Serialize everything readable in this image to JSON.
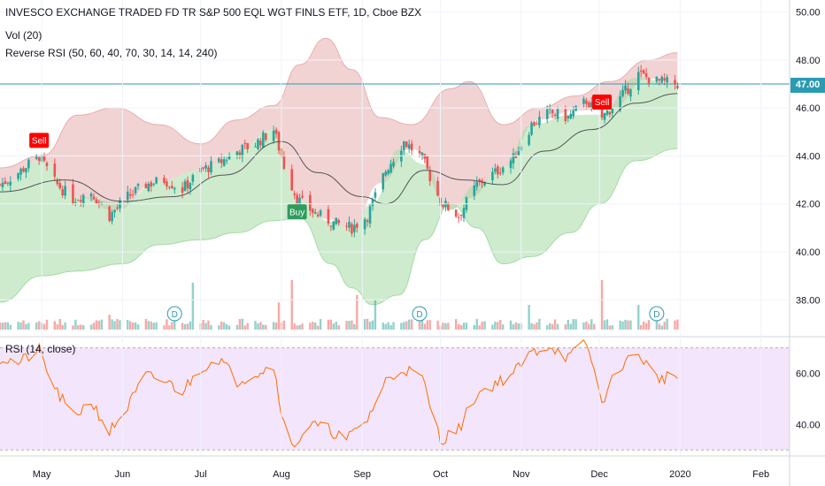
{
  "legend": {
    "title": "INVESCO EXCHANGE TRADED FD TR S&P 500 EQL WGT FINLS ETF, 1D, Cboe BZX",
    "volume": "Vol (20)",
    "reverse_rsi": "Reverse RSI (50, 60, 40, 70, 30, 14, 14, 240)",
    "rsi": "RSI (14, close)"
  },
  "colors": {
    "up": "#26a69a",
    "down": "#ef5350",
    "band_upper": "#e8aeae",
    "band_lower": "#a5dba5",
    "ma": "#555555",
    "rsi_line": "#ff6d00",
    "rsi_bg": "#f3e5fb",
    "price_line": "#2a9bb2",
    "sell_marker": "#ff0000",
    "buy_marker": "#2e9c5e"
  },
  "last_price": "47.00",
  "signals": [
    {
      "label": "Sell",
      "date": "2019-04-30",
      "type": "sell"
    },
    {
      "label": "Buy",
      "date": "2019-08-07",
      "type": "buy"
    },
    {
      "label": "Sell",
      "date": "2019-12-02",
      "type": "sell"
    }
  ],
  "dividends": [
    {
      "label": "D",
      "date": "2019-06-21"
    },
    {
      "label": "D",
      "date": "2019-09-23"
    },
    {
      "label": "D",
      "date": "2019-12-23"
    }
  ],
  "chart_data": [
    {
      "type": "candlestick",
      "x_axis_labels": [
        "May",
        "Jun",
        "Jul",
        "Aug",
        "Sep",
        "Oct",
        "Nov",
        "Dec",
        "2020",
        "Feb"
      ],
      "x_axis_dates": [
        "2019-05-01",
        "2019-06-01",
        "2019-07-01",
        "2019-08-01",
        "2019-09-01",
        "2019-10-01",
        "2019-11-01",
        "2019-12-01",
        "2020-01-01",
        "2020-02-01"
      ],
      "y_ticks": [
        "38.00",
        "40.00",
        "42.00",
        "44.00",
        "46.00",
        "48.00",
        "50.00"
      ],
      "ylim": [
        36.5,
        50.5
      ],
      "xlim": [
        "2019-04-15",
        "2020-02-12"
      ],
      "price_line": 47.0,
      "price_path": [
        [
          "2019-04-15",
          42.8
        ],
        [
          "2019-04-22",
          43.3
        ],
        [
          "2019-04-30",
          44.0
        ],
        [
          "2019-05-06",
          42.9
        ],
        [
          "2019-05-13",
          42.2
        ],
        [
          "2019-05-20",
          42.5
        ],
        [
          "2019-05-27",
          41.5
        ],
        [
          "2019-06-03",
          42.3
        ],
        [
          "2019-06-10",
          42.8
        ],
        [
          "2019-06-17",
          43.0
        ],
        [
          "2019-06-24",
          42.6
        ],
        [
          "2019-07-01",
          43.4
        ],
        [
          "2019-07-08",
          43.7
        ],
        [
          "2019-07-15",
          44.2
        ],
        [
          "2019-07-22",
          44.5
        ],
        [
          "2019-07-29",
          45.1
        ],
        [
          "2019-08-02",
          43.6
        ],
        [
          "2019-08-07",
          42.2
        ],
        [
          "2019-08-14",
          41.6
        ],
        [
          "2019-08-21",
          41.2
        ],
        [
          "2019-08-28",
          41.0
        ],
        [
          "2019-09-03",
          41.5
        ],
        [
          "2019-09-10",
          43.4
        ],
        [
          "2019-09-17",
          44.6
        ],
        [
          "2019-09-24",
          43.9
        ],
        [
          "2019-10-01",
          42.1
        ],
        [
          "2019-10-08",
          41.5
        ],
        [
          "2019-10-15",
          42.8
        ],
        [
          "2019-10-22",
          43.3
        ],
        [
          "2019-10-29",
          43.9
        ],
        [
          "2019-11-05",
          45.3
        ],
        [
          "2019-11-12",
          45.8
        ],
        [
          "2019-11-19",
          45.6
        ],
        [
          "2019-11-26",
          46.3
        ],
        [
          "2019-12-02",
          45.6
        ],
        [
          "2019-12-09",
          46.4
        ],
        [
          "2019-12-16",
          47.4
        ],
        [
          "2019-12-23",
          47.1
        ],
        [
          "2019-12-31",
          47.0
        ]
      ],
      "upper_band": [
        [
          "2019-04-15",
          43.5
        ],
        [
          "2019-05-01",
          44.0
        ],
        [
          "2019-05-15",
          45.7
        ],
        [
          "2019-05-29",
          46.0
        ],
        [
          "2019-06-15",
          45.3
        ],
        [
          "2019-07-01",
          44.5
        ],
        [
          "2019-07-15",
          45.5
        ],
        [
          "2019-07-29",
          46.1
        ],
        [
          "2019-08-08",
          47.8
        ],
        [
          "2019-08-18",
          48.9
        ],
        [
          "2019-08-28",
          47.6
        ],
        [
          "2019-09-08",
          45.6
        ],
        [
          "2019-09-20",
          45.3
        ],
        [
          "2019-10-05",
          46.8
        ],
        [
          "2019-10-12",
          47.1
        ],
        [
          "2019-10-25",
          45.3
        ],
        [
          "2019-11-08",
          46.0
        ],
        [
          "2019-11-22",
          46.5
        ],
        [
          "2019-12-05",
          47.1
        ],
        [
          "2019-12-20",
          48.0
        ],
        [
          "2019-12-31",
          48.3
        ]
      ],
      "lower_band": [
        [
          "2019-04-15",
          37.9
        ],
        [
          "2019-05-01",
          39.0
        ],
        [
          "2019-05-15",
          39.2
        ],
        [
          "2019-06-01",
          39.5
        ],
        [
          "2019-06-15",
          40.3
        ],
        [
          "2019-07-01",
          40.5
        ],
        [
          "2019-07-15",
          40.8
        ],
        [
          "2019-07-29",
          41.3
        ],
        [
          "2019-08-08",
          41.4
        ],
        [
          "2019-08-20",
          39.5
        ],
        [
          "2019-08-28",
          38.5
        ],
        [
          "2019-09-05",
          37.8
        ],
        [
          "2019-09-15",
          38.2
        ],
        [
          "2019-09-25",
          40.5
        ],
        [
          "2019-10-05",
          42.0
        ],
        [
          "2019-10-15",
          41.0
        ],
        [
          "2019-10-25",
          39.5
        ],
        [
          "2019-11-05",
          39.8
        ],
        [
          "2019-11-20",
          40.8
        ],
        [
          "2019-12-01",
          42.0
        ],
        [
          "2019-12-15",
          43.8
        ],
        [
          "2019-12-31",
          44.3
        ]
      ],
      "ma": [
        [
          "2019-04-15",
          42.5
        ],
        [
          "2019-05-10",
          43.0
        ],
        [
          "2019-06-01",
          42.1
        ],
        [
          "2019-06-20",
          42.3
        ],
        [
          "2019-07-10",
          43.2
        ],
        [
          "2019-08-01",
          44.6
        ],
        [
          "2019-08-15",
          43.3
        ],
        [
          "2019-09-01",
          42.3
        ],
        [
          "2019-09-10",
          42.0
        ],
        [
          "2019-09-25",
          43.4
        ],
        [
          "2019-10-10",
          43.0
        ],
        [
          "2019-10-25",
          42.8
        ],
        [
          "2019-11-10",
          44.2
        ],
        [
          "2019-11-28",
          45.1
        ],
        [
          "2019-12-15",
          46.2
        ],
        [
          "2019-12-31",
          46.6
        ]
      ]
    },
    {
      "type": "bar",
      "name": "Vol (20)",
      "volume_spikes": [
        [
          "2019-05-27",
          0.3
        ],
        [
          "2019-06-21",
          0.4
        ],
        [
          "2019-06-28",
          0.95
        ],
        [
          "2019-07-31",
          0.55
        ],
        [
          "2019-08-05",
          1.0
        ],
        [
          "2019-08-30",
          0.7
        ],
        [
          "2019-09-06",
          0.6
        ],
        [
          "2019-09-23",
          0.4
        ],
        [
          "2019-11-04",
          0.5
        ],
        [
          "2019-12-02",
          1.0
        ],
        [
          "2019-12-16",
          0.5
        ],
        [
          "2019-12-23",
          0.4
        ]
      ]
    },
    {
      "type": "line",
      "name": "RSI (14, close)",
      "y_ticks": [
        "40.00",
        "60.00"
      ],
      "ylim": [
        28,
        74
      ],
      "levels": [
        70,
        30
      ],
      "values": [
        [
          "2019-04-15",
          66
        ],
        [
          "2019-04-22",
          64
        ],
        [
          "2019-04-30",
          69
        ],
        [
          "2019-05-06",
          54
        ],
        [
          "2019-05-13",
          43
        ],
        [
          "2019-05-20",
          49
        ],
        [
          "2019-05-27",
          37
        ],
        [
          "2019-06-03",
          47
        ],
        [
          "2019-06-10",
          59
        ],
        [
          "2019-06-17",
          57
        ],
        [
          "2019-06-24",
          53
        ],
        [
          "2019-07-01",
          62
        ],
        [
          "2019-07-08",
          66
        ],
        [
          "2019-07-15",
          57
        ],
        [
          "2019-07-22",
          60
        ],
        [
          "2019-07-29",
          63
        ],
        [
          "2019-08-02",
          40
        ],
        [
          "2019-08-05",
          31
        ],
        [
          "2019-08-12",
          40
        ],
        [
          "2019-08-19",
          38
        ],
        [
          "2019-08-26",
          34
        ],
        [
          "2019-09-03",
          42
        ],
        [
          "2019-09-10",
          57
        ],
        [
          "2019-09-17",
          62
        ],
        [
          "2019-09-24",
          58
        ],
        [
          "2019-10-01",
          34
        ],
        [
          "2019-10-08",
          38
        ],
        [
          "2019-10-15",
          52
        ],
        [
          "2019-10-22",
          56
        ],
        [
          "2019-10-29",
          60
        ],
        [
          "2019-11-05",
          68
        ],
        [
          "2019-11-12",
          71
        ],
        [
          "2019-11-19",
          66
        ],
        [
          "2019-11-26",
          72
        ],
        [
          "2019-12-02",
          49
        ],
        [
          "2019-12-09",
          63
        ],
        [
          "2019-12-16",
          68
        ],
        [
          "2019-12-23",
          58
        ],
        [
          "2019-12-31",
          59
        ]
      ]
    }
  ]
}
